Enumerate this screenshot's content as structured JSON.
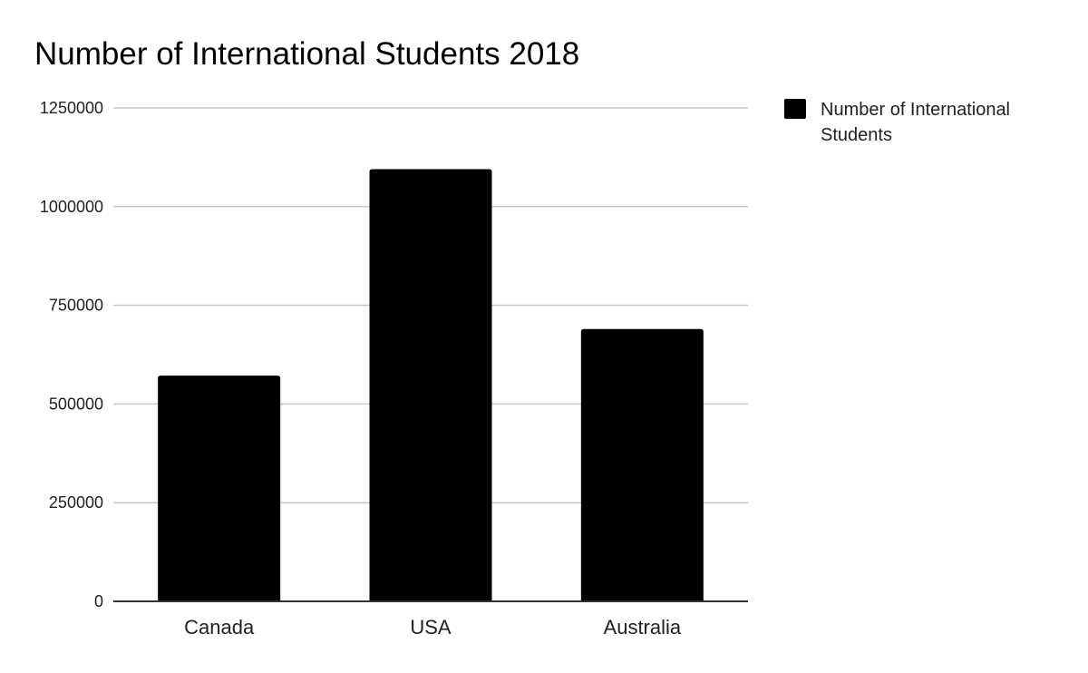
{
  "chart_data": {
    "type": "bar",
    "title": "Number of International Students 2018",
    "xlabel": "",
    "ylabel": "",
    "categories": [
      "Canada",
      "USA",
      "Australia"
    ],
    "series": [
      {
        "name": "Number of International Students",
        "values": [
          572000,
          1095000,
          690000
        ],
        "color": "#000000"
      }
    ],
    "ylim": [
      0,
      1250000
    ],
    "yticks": [
      0,
      250000,
      500000,
      750000,
      1000000,
      1250000
    ],
    "grid": true,
    "legend": {
      "position": "top-right",
      "lines": [
        "Number of International",
        "Students"
      ]
    },
    "colors": {
      "bar": "#000000",
      "grid": "#c8c8c8",
      "axis": "#333333",
      "background": "#ffffff"
    }
  }
}
